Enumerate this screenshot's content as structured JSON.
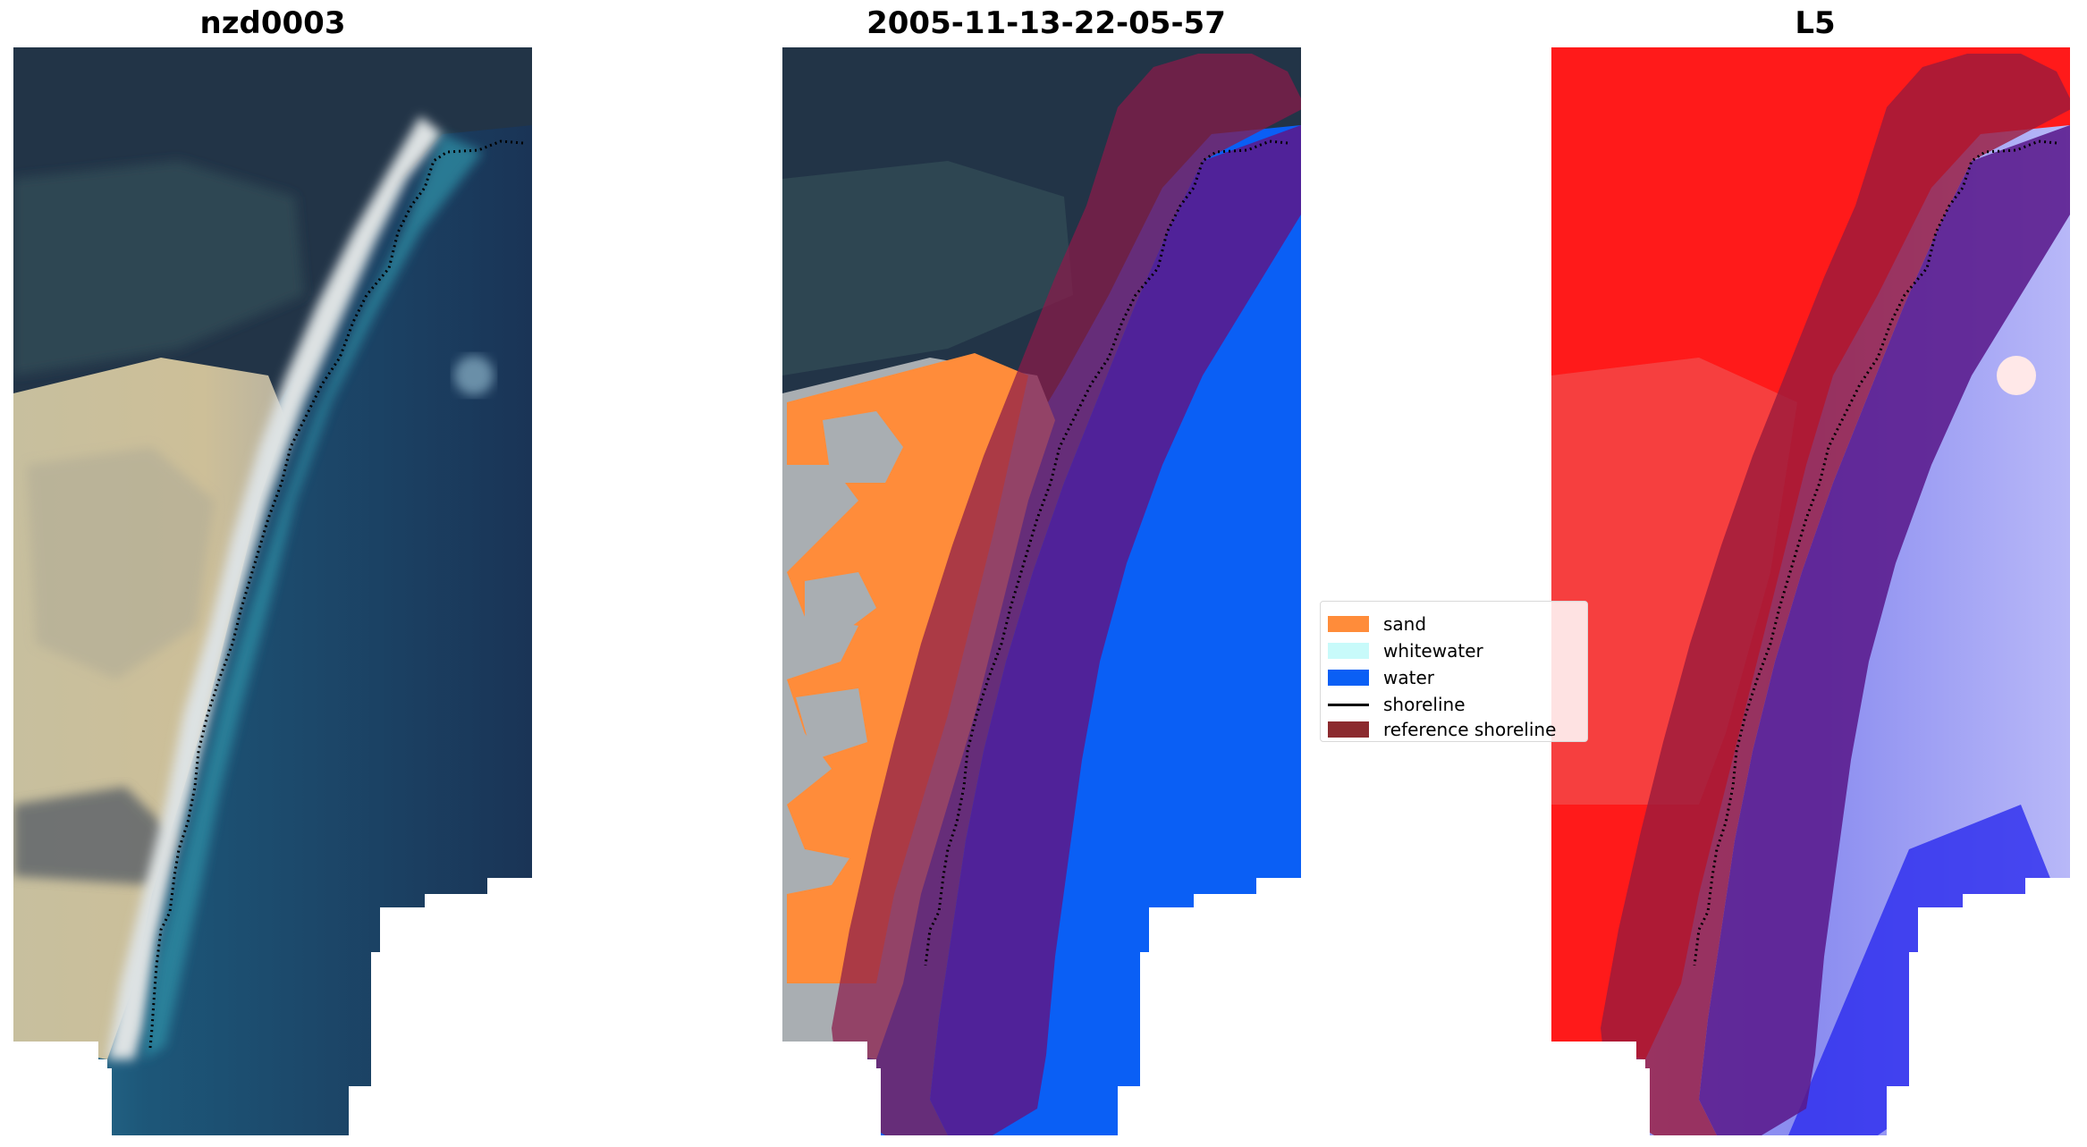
{
  "figure": {
    "panels": [
      {
        "title": "nzd0003"
      },
      {
        "title": "2005-11-13-22-05-57"
      },
      {
        "title": "L5"
      }
    ]
  },
  "legend": {
    "items": [
      {
        "label": "sand",
        "kind": "patch",
        "color": "#ff8c3a"
      },
      {
        "label": "whitewater",
        "kind": "patch",
        "color": "#c8fafa"
      },
      {
        "label": "water",
        "kind": "patch",
        "color": "#0a5ff5"
      },
      {
        "label": "shoreline",
        "kind": "line",
        "color": "#000000"
      },
      {
        "label": "reference shoreline",
        "kind": "patch",
        "color": "#8b2a2e"
      }
    ]
  },
  "colors": {
    "ocean_dark": "#1a3b5c",
    "land_dark": "#1e3042",
    "sand_pale": "#c9bfa2",
    "reference_buffer": "#8b1a4a",
    "classified_water": "#0a5ff5",
    "classified_sand": "#ff8c3a",
    "ndwi_land": "#ff1a1a",
    "ndwi_water": "#6a6af5"
  }
}
